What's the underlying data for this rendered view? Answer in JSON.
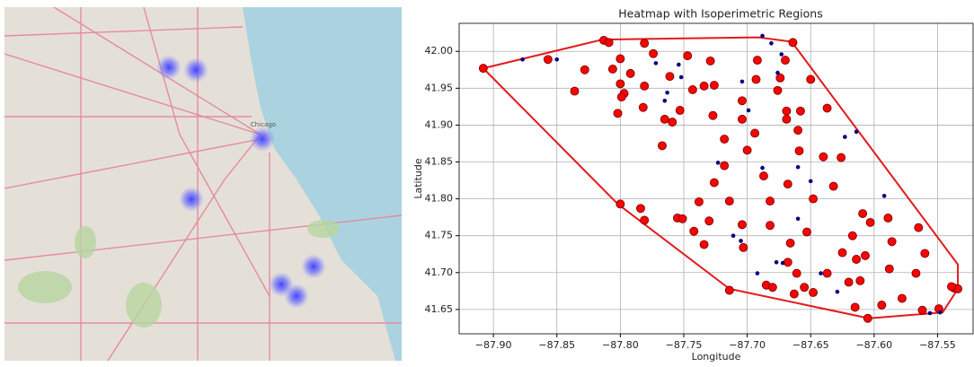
{
  "map": {
    "label": "Chicago"
  },
  "chart_data": {
    "type": "scatter",
    "title": "Heatmap with Isoperimetric Regions",
    "x_label": "Longitude",
    "y_label": "Latitude",
    "xlim": [
      -87.927,
      -87.522
    ],
    "ylim": [
      41.617,
      42.038
    ],
    "grid": true,
    "xticks": [
      {
        "value": -87.9,
        "label": "−87.90"
      },
      {
        "value": -87.85,
        "label": "−87.85"
      },
      {
        "value": -87.8,
        "label": "−87.80"
      },
      {
        "value": -87.75,
        "label": "−87.75"
      },
      {
        "value": -87.7,
        "label": "−87.70"
      },
      {
        "value": -87.65,
        "label": "−87.65"
      },
      {
        "value": -87.6,
        "label": "−87.60"
      },
      {
        "value": -87.55,
        "label": "−87.55"
      }
    ],
    "yticks": [
      41.65,
      {
        "value": 41.7,
        "label": "41.70"
      },
      41.75,
      {
        "value": 41.8,
        "label": "41.80"
      },
      41.85,
      {
        "value": 41.9,
        "label": "41.90"
      },
      41.95,
      {
        "value": 42.0,
        "label": "42.00"
      }
    ],
    "series": [
      {
        "style": "line",
        "color": "#e41a1c",
        "x": [
          -87.908,
          -87.814,
          -87.691,
          -87.665,
          -87.534,
          -87.534,
          -87.546,
          -87.604,
          -87.714,
          -87.802,
          -87.908
        ],
        "y": [
          41.977,
          42.016,
          42.019,
          42.013,
          41.711,
          41.678,
          41.646,
          41.638,
          41.678,
          41.793,
          41.977
        ]
      },
      {
        "style": "marker",
        "color": "#ff0000",
        "edge_color": "#7a0000",
        "marker_size": 4.5,
        "x": [
          -87.908,
          -87.857,
          -87.828,
          -87.836,
          -87.813,
          -87.809,
          -87.8,
          -87.806,
          -87.8,
          -87.797,
          -87.799,
          -87.802,
          -87.781,
          -87.774,
          -87.792,
          -87.781,
          -87.782,
          -87.765,
          -87.759,
          -87.767,
          -87.747,
          -87.761,
          -87.753,
          -87.743,
          -87.734,
          -87.729,
          -87.726,
          -87.727,
          -87.718,
          -87.718,
          -87.726,
          -87.738,
          -87.73,
          -87.734,
          -87.755,
          -87.751,
          -87.742,
          -87.784,
          -87.781,
          -87.8,
          -87.714,
          -87.714,
          -87.704,
          -87.704,
          -87.7,
          -87.693,
          -87.692,
          -87.694,
          -87.704,
          -87.703,
          -87.682,
          -87.682,
          -87.685,
          -87.68,
          -87.687,
          -87.674,
          -87.676,
          -87.67,
          -87.669,
          -87.669,
          -87.668,
          -87.666,
          -87.668,
          -87.664,
          -87.663,
          -87.661,
          -87.659,
          -87.66,
          -87.658,
          -87.655,
          -87.653,
          -87.65,
          -87.648,
          -87.648,
          -87.64,
          -87.637,
          -87.637,
          -87.632,
          -87.626,
          -87.625,
          -87.62,
          -87.617,
          -87.615,
          -87.614,
          -87.611,
          -87.609,
          -87.607,
          -87.605,
          -87.603,
          -87.594,
          -87.589,
          -87.588,
          -87.586,
          -87.578,
          -87.567,
          -87.565,
          -87.56,
          -87.562,
          -87.549,
          -87.537,
          -87.534,
          -87.539
        ],
        "y": [
          41.977,
          41.989,
          41.975,
          41.946,
          42.015,
          42.012,
          41.99,
          41.976,
          41.956,
          41.943,
          41.938,
          41.916,
          42.011,
          41.997,
          41.97,
          41.953,
          41.924,
          41.908,
          41.904,
          41.872,
          41.994,
          41.966,
          41.92,
          41.948,
          41.953,
          41.987,
          41.954,
          41.913,
          41.881,
          41.845,
          41.822,
          41.796,
          41.77,
          41.738,
          41.774,
          41.773,
          41.756,
          41.787,
          41.771,
          41.793,
          41.676,
          41.797,
          41.933,
          41.908,
          41.866,
          41.962,
          41.988,
          41.889,
          41.765,
          41.734,
          41.797,
          41.764,
          41.683,
          41.68,
          41.831,
          41.964,
          41.947,
          41.988,
          41.919,
          41.908,
          41.82,
          41.74,
          41.714,
          42.012,
          41.671,
          41.699,
          41.865,
          41.893,
          41.919,
          41.68,
          41.755,
          41.962,
          41.8,
          41.673,
          41.857,
          41.699,
          41.923,
          41.817,
          41.856,
          41.727,
          41.687,
          41.75,
          41.653,
          41.718,
          41.689,
          41.78,
          41.723,
          41.638,
          41.768,
          41.656,
          41.774,
          41.705,
          41.742,
          41.665,
          41.699,
          41.761,
          41.726,
          41.649,
          41.651,
          41.679,
          41.678,
          41.681
        ]
      },
      {
        "style": "marker",
        "color": "#000080",
        "marker_size": 2.3,
        "x": [
          -87.85,
          -87.772,
          -87.763,
          -87.765,
          -87.754,
          -87.752,
          -87.723,
          -87.711,
          -87.705,
          -87.704,
          -87.699,
          -87.688,
          -87.688,
          -87.681,
          -87.676,
          -87.673,
          -87.66,
          -87.66,
          -87.677,
          -87.672,
          -87.65,
          -87.642,
          -87.629,
          -87.623,
          -87.614,
          -87.592,
          -87.548,
          -87.556,
          -87.877,
          -87.692
        ],
        "y": [
          41.989,
          41.984,
          41.944,
          41.933,
          41.982,
          41.965,
          41.849,
          41.75,
          41.743,
          41.959,
          41.92,
          42.021,
          41.842,
          42.011,
          41.971,
          41.996,
          41.843,
          41.773,
          41.714,
          41.713,
          41.824,
          41.699,
          41.674,
          41.884,
          41.891,
          41.804,
          41.646,
          41.645,
          41.989,
          41.699
        ]
      }
    ]
  }
}
